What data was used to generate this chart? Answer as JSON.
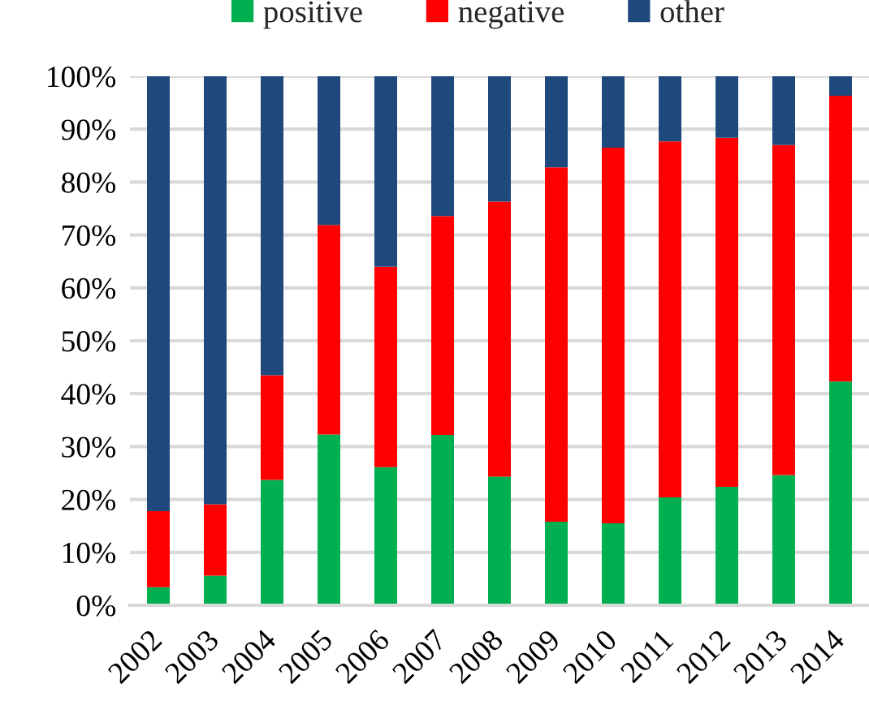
{
  "chart_data": {
    "type": "bar",
    "stacked": true,
    "categories": [
      "2002",
      "2003",
      "2004",
      "2005",
      "2006",
      "2007",
      "2008",
      "2009",
      "2010",
      "2011",
      "2012",
      "2013",
      "2014"
    ],
    "series": [
      {
        "name": "positive",
        "color": "#00b050",
        "values": [
          3.4,
          5.6,
          23.7,
          32.3,
          26.1,
          32.2,
          24.3,
          15.8,
          15.5,
          20.4,
          22.4,
          24.6,
          42.3
        ]
      },
      {
        "name": "negative",
        "color": "#ff0000",
        "values": [
          14.4,
          13.5,
          19.8,
          39.6,
          37.9,
          41.4,
          52.0,
          67.0,
          71.0,
          67.3,
          66.0,
          62.4,
          54.0
        ]
      },
      {
        "name": "other",
        "color": "#1f497d",
        "values": [
          82.2,
          80.9,
          56.5,
          28.1,
          36.0,
          26.4,
          23.7,
          17.2,
          13.5,
          12.3,
          11.6,
          13.0,
          3.7
        ]
      }
    ],
    "ylim": [
      0,
      100
    ],
    "yticks": [
      {
        "value": 0,
        "label": "0%"
      },
      {
        "value": 10,
        "label": "10%"
      },
      {
        "value": 20,
        "label": "20%"
      },
      {
        "value": 30,
        "label": "30%"
      },
      {
        "value": 40,
        "label": "40%"
      },
      {
        "value": 50,
        "label": "50%"
      },
      {
        "value": 60,
        "label": "60%"
      },
      {
        "value": 70,
        "label": "70%"
      },
      {
        "value": 80,
        "label": "80%"
      },
      {
        "value": 90,
        "label": "90%"
      },
      {
        "value": 100,
        "label": "100%"
      }
    ],
    "grid": "y",
    "legend": "top"
  }
}
